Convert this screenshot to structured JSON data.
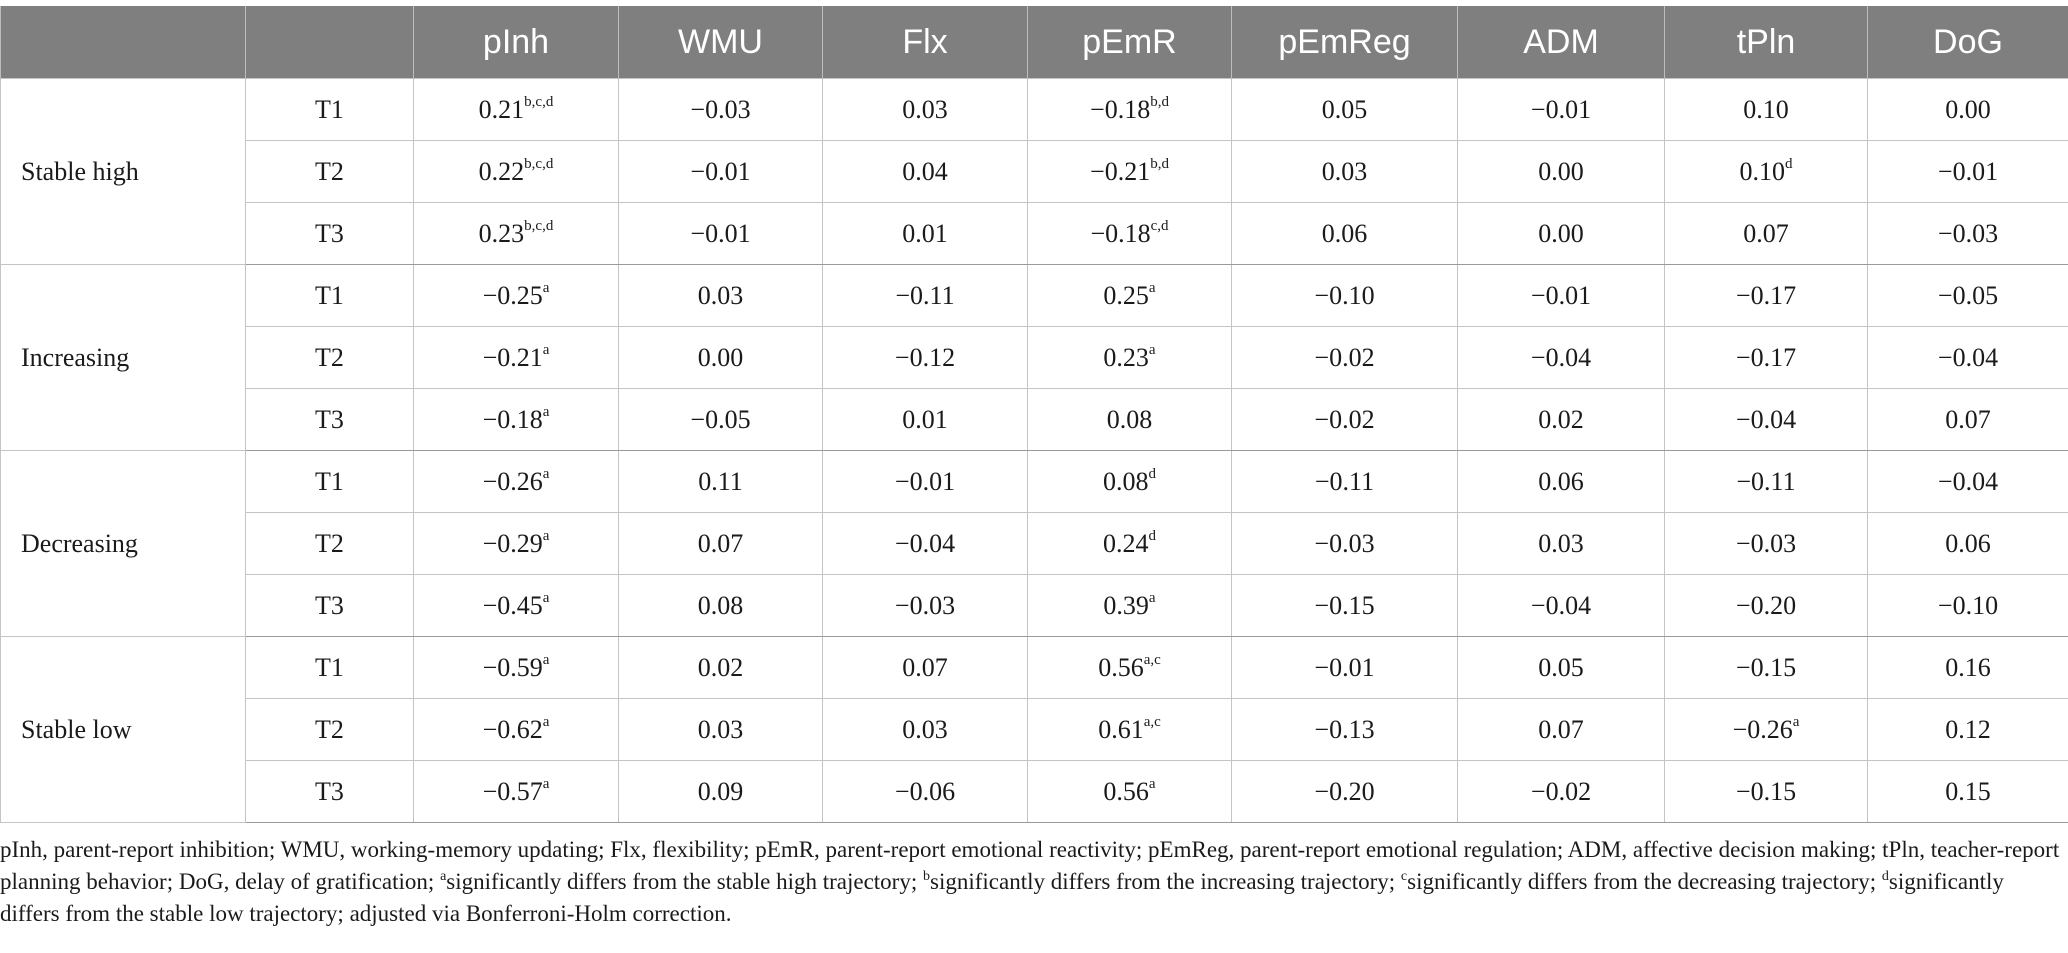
{
  "table": {
    "columns": [
      "",
      "",
      "pInh",
      "WMU",
      "Flx",
      "pEmR",
      "pEmReg",
      "ADM",
      "tPln",
      "DoG"
    ],
    "groups": [
      {
        "label": "Stable high",
        "rows": [
          {
            "time": "T1",
            "cells": [
              {
                "v": "0.21",
                "s": "b,c,d"
              },
              {
                "v": "−0.03",
                "s": ""
              },
              {
                "v": "0.03",
                "s": ""
              },
              {
                "v": "−0.18",
                "s": "b,d"
              },
              {
                "v": "0.05",
                "s": ""
              },
              {
                "v": "−0.01",
                "s": ""
              },
              {
                "v": "0.10",
                "s": ""
              },
              {
                "v": "0.00",
                "s": ""
              }
            ]
          },
          {
            "time": "T2",
            "cells": [
              {
                "v": "0.22",
                "s": "b,c,d"
              },
              {
                "v": "−0.01",
                "s": ""
              },
              {
                "v": "0.04",
                "s": ""
              },
              {
                "v": "−0.21",
                "s": "b,d"
              },
              {
                "v": "0.03",
                "s": ""
              },
              {
                "v": "0.00",
                "s": ""
              },
              {
                "v": "0.10",
                "s": "d"
              },
              {
                "v": "−0.01",
                "s": ""
              }
            ]
          },
          {
            "time": "T3",
            "cells": [
              {
                "v": "0.23",
                "s": "b,c,d"
              },
              {
                "v": "−0.01",
                "s": ""
              },
              {
                "v": "0.01",
                "s": ""
              },
              {
                "v": "−0.18",
                "s": "c,d"
              },
              {
                "v": "0.06",
                "s": ""
              },
              {
                "v": "0.00",
                "s": ""
              },
              {
                "v": "0.07",
                "s": ""
              },
              {
                "v": "−0.03",
                "s": ""
              }
            ]
          }
        ]
      },
      {
        "label": "Increasing",
        "rows": [
          {
            "time": "T1",
            "cells": [
              {
                "v": "−0.25",
                "s": "a"
              },
              {
                "v": "0.03",
                "s": ""
              },
              {
                "v": "−0.11",
                "s": ""
              },
              {
                "v": "0.25",
                "s": "a"
              },
              {
                "v": "−0.10",
                "s": ""
              },
              {
                "v": "−0.01",
                "s": ""
              },
              {
                "v": "−0.17",
                "s": ""
              },
              {
                "v": "−0.05",
                "s": ""
              }
            ]
          },
          {
            "time": "T2",
            "cells": [
              {
                "v": "−0.21",
                "s": "a"
              },
              {
                "v": "0.00",
                "s": ""
              },
              {
                "v": "−0.12",
                "s": ""
              },
              {
                "v": "0.23",
                "s": "a"
              },
              {
                "v": "−0.02",
                "s": ""
              },
              {
                "v": "−0.04",
                "s": ""
              },
              {
                "v": "−0.17",
                "s": ""
              },
              {
                "v": "−0.04",
                "s": ""
              }
            ]
          },
          {
            "time": "T3",
            "cells": [
              {
                "v": "−0.18",
                "s": "a"
              },
              {
                "v": "−0.05",
                "s": ""
              },
              {
                "v": "0.01",
                "s": ""
              },
              {
                "v": "0.08",
                "s": ""
              },
              {
                "v": "−0.02",
                "s": ""
              },
              {
                "v": "0.02",
                "s": ""
              },
              {
                "v": "−0.04",
                "s": ""
              },
              {
                "v": "0.07",
                "s": ""
              }
            ]
          }
        ]
      },
      {
        "label": "Decreasing",
        "rows": [
          {
            "time": "T1",
            "cells": [
              {
                "v": "−0.26",
                "s": "a"
              },
              {
                "v": "0.11",
                "s": ""
              },
              {
                "v": "−0.01",
                "s": ""
              },
              {
                "v": "0.08",
                "s": "d"
              },
              {
                "v": "−0.11",
                "s": ""
              },
              {
                "v": "0.06",
                "s": ""
              },
              {
                "v": "−0.11",
                "s": ""
              },
              {
                "v": "−0.04",
                "s": ""
              }
            ]
          },
          {
            "time": "T2",
            "cells": [
              {
                "v": "−0.29",
                "s": "a"
              },
              {
                "v": "0.07",
                "s": ""
              },
              {
                "v": "−0.04",
                "s": ""
              },
              {
                "v": "0.24",
                "s": "d"
              },
              {
                "v": "−0.03",
                "s": ""
              },
              {
                "v": "0.03",
                "s": ""
              },
              {
                "v": "−0.03",
                "s": ""
              },
              {
                "v": "0.06",
                "s": ""
              }
            ]
          },
          {
            "time": "T3",
            "cells": [
              {
                "v": "−0.45",
                "s": "a"
              },
              {
                "v": "0.08",
                "s": ""
              },
              {
                "v": "−0.03",
                "s": ""
              },
              {
                "v": "0.39",
                "s": "a"
              },
              {
                "v": "−0.15",
                "s": ""
              },
              {
                "v": "−0.04",
                "s": ""
              },
              {
                "v": "−0.20",
                "s": ""
              },
              {
                "v": "−0.10",
                "s": ""
              }
            ]
          }
        ]
      },
      {
        "label": "Stable low",
        "rows": [
          {
            "time": "T1",
            "cells": [
              {
                "v": "−0.59",
                "s": "a"
              },
              {
                "v": "0.02",
                "s": ""
              },
              {
                "v": "0.07",
                "s": ""
              },
              {
                "v": "0.56",
                "s": "a,c"
              },
              {
                "v": "−0.01",
                "s": ""
              },
              {
                "v": "0.05",
                "s": ""
              },
              {
                "v": "−0.15",
                "s": ""
              },
              {
                "v": "0.16",
                "s": ""
              }
            ]
          },
          {
            "time": "T2",
            "cells": [
              {
                "v": "−0.62",
                "s": "a"
              },
              {
                "v": "0.03",
                "s": ""
              },
              {
                "v": "0.03",
                "s": ""
              },
              {
                "v": "0.61",
                "s": "a,c"
              },
              {
                "v": "−0.13",
                "s": ""
              },
              {
                "v": "0.07",
                "s": ""
              },
              {
                "v": "−0.26",
                "s": "a"
              },
              {
                "v": "0.12",
                "s": ""
              }
            ]
          },
          {
            "time": "T3",
            "cells": [
              {
                "v": "−0.57",
                "s": "a"
              },
              {
                "v": "0.09",
                "s": ""
              },
              {
                "v": "−0.06",
                "s": ""
              },
              {
                "v": "0.56",
                "s": "a"
              },
              {
                "v": "−0.20",
                "s": ""
              },
              {
                "v": "−0.02",
                "s": ""
              },
              {
                "v": "−0.15",
                "s": ""
              },
              {
                "v": "0.15",
                "s": ""
              }
            ]
          }
        ]
      }
    ]
  },
  "footnote": {
    "prefix": "pInh, parent-report inhibition; WMU, working-memory updating; Flx, flexibility; pEmR, parent-report emotional reactivity; pEmReg, parent-report emotional regulation; ADM, affective decision making; tPln, teacher-report planning behavior; DoG, delay of gratification; ",
    "notes": [
      {
        "mark": "a",
        "text": "significantly differs from the stable high trajectory; "
      },
      {
        "mark": "b",
        "text": "significantly differs from the increasing trajectory; "
      },
      {
        "mark": "c",
        "text": "significantly differs from the decreasing trajectory; "
      },
      {
        "mark": "d",
        "text": "significantly differs from the stable low trajectory; adjusted via Bonferroni-Holm correction."
      }
    ]
  }
}
